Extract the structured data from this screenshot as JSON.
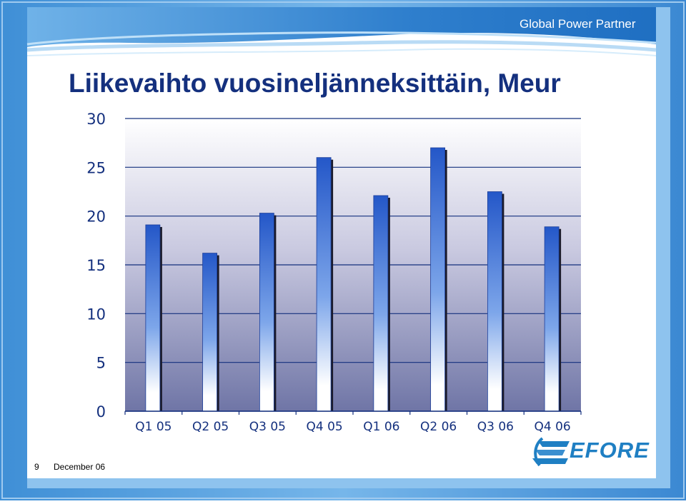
{
  "header": {
    "tagline": "Global Power Partner"
  },
  "slide": {
    "title": "Liikevaihto vuosineljänneksittäin, Meur"
  },
  "footer": {
    "page_number": "9",
    "date": "December 06"
  },
  "logo": {
    "text": "EFORE",
    "icon": "efore-logo-icon"
  },
  "colors": {
    "title": "#14307e",
    "bar_top": "#2457c8",
    "bar_bottom": "#ffffff",
    "accent": "#5aa7e0"
  },
  "chart_data": {
    "type": "bar",
    "title": "",
    "xlabel": "",
    "ylabel": "",
    "categories": [
      "Q1 05",
      "Q2 05",
      "Q3 05",
      "Q4 05",
      "Q1 06",
      "Q2 06",
      "Q3 06",
      "Q4 06"
    ],
    "values": [
      19.1,
      16.2,
      20.3,
      26.0,
      22.1,
      27.0,
      22.5,
      18.9
    ],
    "ylim": [
      0,
      30
    ],
    "yticks": [
      "0",
      "5",
      "10",
      "15",
      "20",
      "25",
      "30"
    ],
    "grid": true,
    "legend": "none"
  }
}
